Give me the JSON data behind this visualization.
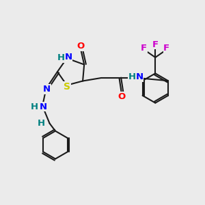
{
  "bg_color": "#ebebeb",
  "bond_color": "#1a1a1a",
  "bond_lw": 1.5,
  "atoms": {
    "S": {
      "color": "#cccc00"
    },
    "N": {
      "color": "#0000ff"
    },
    "O": {
      "color": "#ff0000"
    },
    "H": {
      "color": "#008080"
    },
    "F": {
      "color": "#cc00cc"
    },
    "C": {
      "color": "#1a1a1a"
    }
  },
  "fontsize": 9.5,
  "ring_lw": 1.5
}
